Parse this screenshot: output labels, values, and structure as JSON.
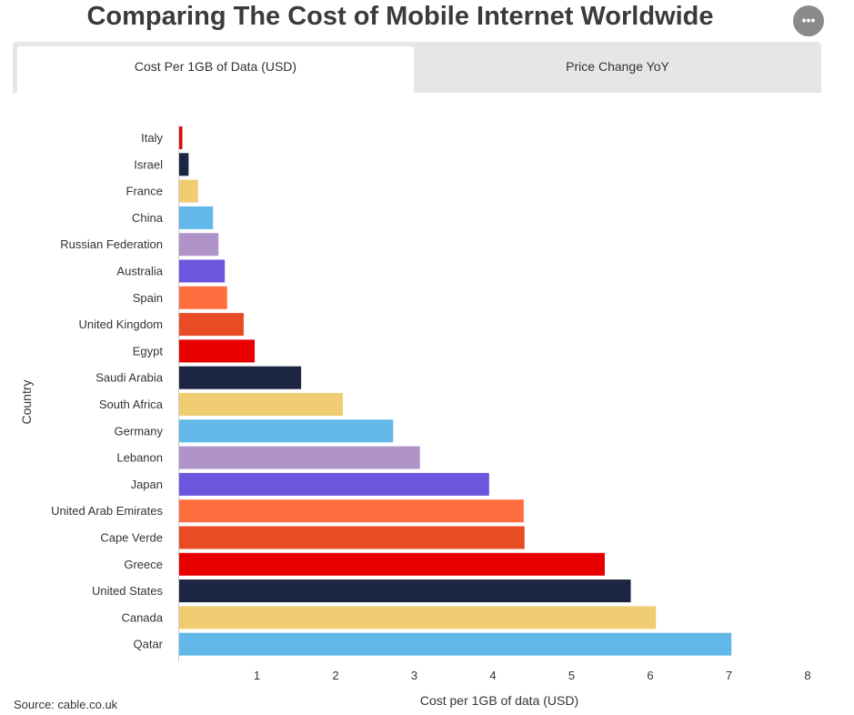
{
  "header": {
    "title": "Comparing The Cost of Mobile Internet Worldwide",
    "menu_icon": "ellipsis-icon"
  },
  "tabs": [
    {
      "label": "Cost Per 1GB of Data (USD)",
      "active": true
    },
    {
      "label": "Price Change YoY",
      "active": false
    }
  ],
  "source": "Source: cable.co.uk",
  "chart_data": {
    "type": "bar",
    "orientation": "horizontal",
    "categories": [
      "Italy",
      "Israel",
      "France",
      "China",
      "Russian Federation",
      "Australia",
      "Spain",
      "United Kingdom",
      "Egypt",
      "Saudi Arabia",
      "South Africa",
      "Germany",
      "Lebanon",
      "Japan",
      "United Arab Emirates",
      "Cape Verde",
      "Greece",
      "United States",
      "Canada",
      "Qatar"
    ],
    "values": [
      0.04,
      0.12,
      0.24,
      0.43,
      0.5,
      0.58,
      0.61,
      0.82,
      0.96,
      1.55,
      2.08,
      2.72,
      3.06,
      3.94,
      4.38,
      4.39,
      5.41,
      5.74,
      6.06,
      7.02
    ],
    "colors": [
      "#e3050b",
      "#1c2541",
      "#f0cd72",
      "#62b8e8",
      "#b094c9",
      "#6e55de",
      "#ff6e3f",
      "#e84c25",
      "#e80000",
      "#1c2541",
      "#f0cd72",
      "#62b8e8",
      "#b094c9",
      "#6e55de",
      "#ff6e3f",
      "#e84c25",
      "#e80000",
      "#1c2541",
      "#f0cd72",
      "#62b8e8"
    ],
    "title": "",
    "xlabel": "Cost per 1GB of data (USD)",
    "ylabel": "Country",
    "xlim": [
      0,
      8
    ],
    "xticks": [
      1,
      2,
      3,
      4,
      5,
      6,
      7,
      8
    ],
    "grid": false,
    "legend": "none"
  }
}
